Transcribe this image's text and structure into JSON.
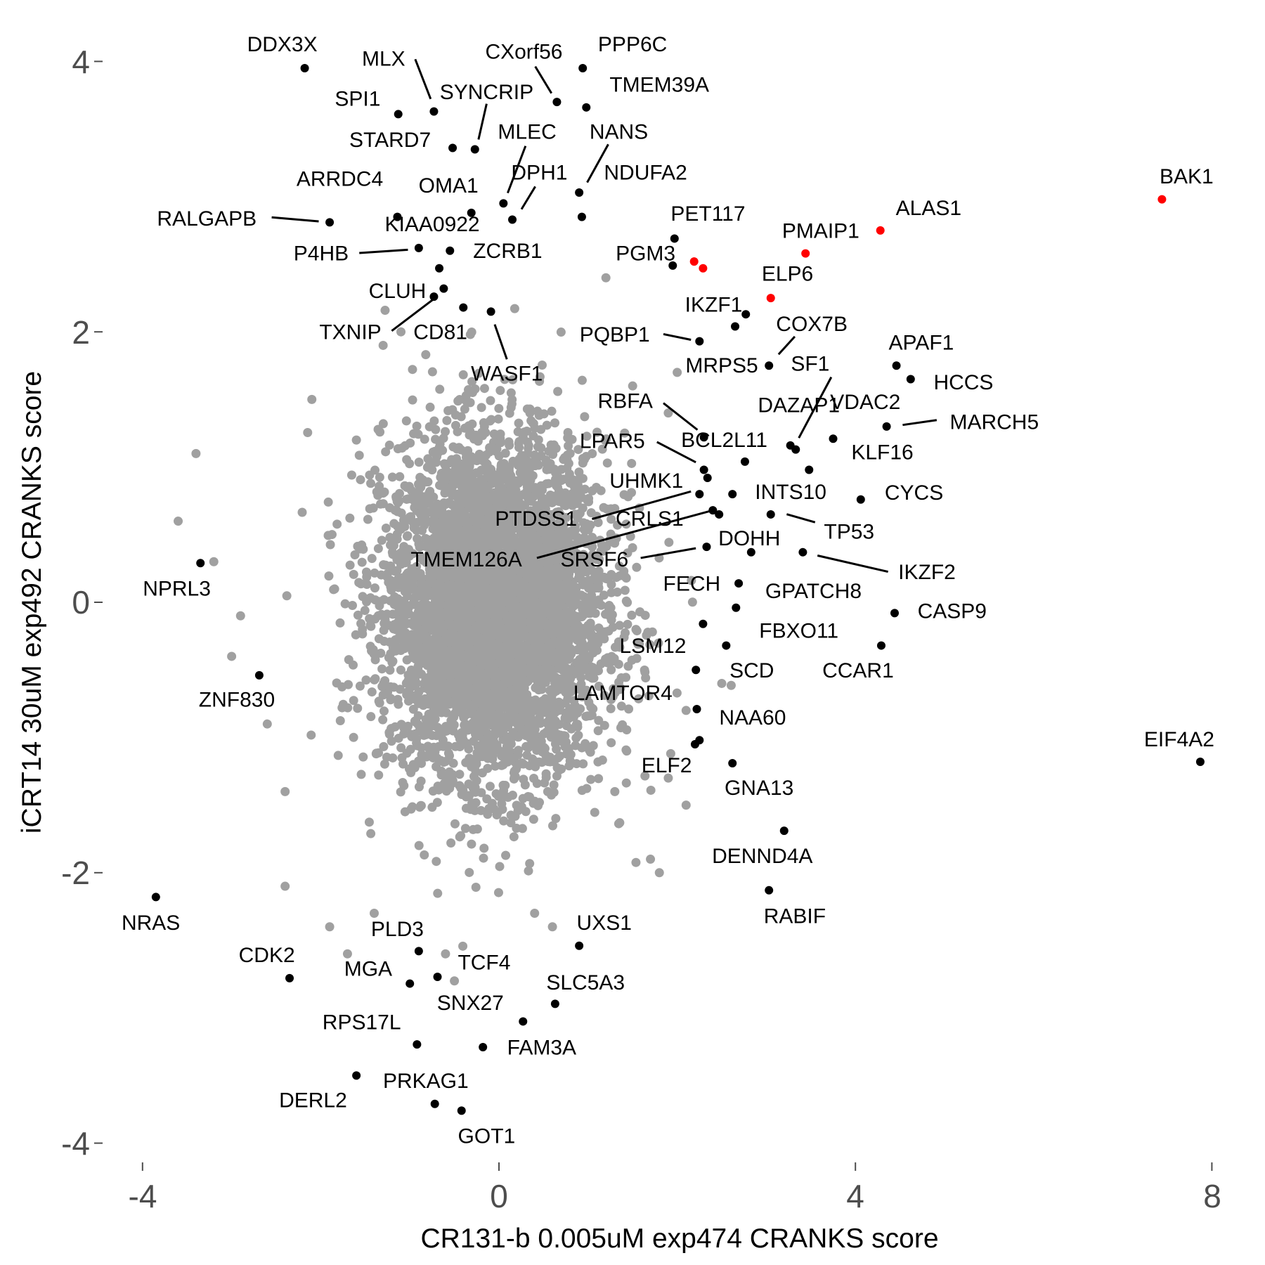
{
  "chart_data": {
    "type": "scatter",
    "title": "",
    "xlabel": "CR131-b 0.005uM exp474 CRANKS score",
    "ylabel": "iCRT14 30uM exp492 CRANKS score",
    "xlim": [
      -4.3,
      8.1
    ],
    "ylim": [
      -4.1,
      4.2
    ],
    "xticks": [
      "-4",
      "0",
      "4",
      "8"
    ],
    "yticks": [
      "-4",
      "-2",
      "0",
      "2",
      "4"
    ],
    "grid": false,
    "legend": "none",
    "colors": {
      "background_points": "#a0a0a0",
      "highlighted": "#000000",
      "red": "#ff0000",
      "tick_text": "#4d4d4d"
    },
    "background_points_outliers": [
      [
        -3.4,
        1.1
      ],
      [
        -3.6,
        0.6
      ],
      [
        -2.9,
        -0.1
      ],
      [
        -3.0,
        -0.4
      ],
      [
        -2.4,
        -1.4
      ],
      [
        -2.4,
        -2.1
      ],
      [
        -1.6,
        1.2
      ],
      [
        -1.7,
        -2.6
      ],
      [
        -1.9,
        -2.4
      ],
      [
        -1.4,
        -2.3
      ],
      [
        -0.6,
        -2.6
      ],
      [
        -0.5,
        -2.8
      ],
      [
        0.4,
        -2.3
      ],
      [
        0.6,
        -2.4
      ],
      [
        1.3,
        -1.4
      ],
      [
        1.9,
        -1.3
      ],
      [
        2.1,
        -1.5
      ],
      [
        1.8,
        -2.0
      ],
      [
        1.7,
        -1.9
      ],
      [
        -1.3,
        1.9
      ],
      [
        -1.1,
        2.0
      ],
      [
        1.2,
        2.4
      ],
      [
        1.5,
        1.6
      ],
      [
        2.0,
        1.7
      ],
      [
        1.9,
        1.4
      ],
      [
        2.1,
        -0.8
      ],
      [
        2.5,
        -0.6
      ],
      [
        -2.1,
        1.5
      ],
      [
        -2.6,
        -0.9
      ],
      [
        -3.2,
        0.3
      ]
    ],
    "points": [
      {
        "label": "DDX3X",
        "x": -2.18,
        "y": 3.95,
        "color": "black"
      },
      {
        "label": "SPI1",
        "x": -1.13,
        "y": 3.61,
        "color": "black"
      },
      {
        "label": "MLX",
        "x": -0.73,
        "y": 3.63,
        "color": "black"
      },
      {
        "label": "STARD7",
        "x": -0.52,
        "y": 3.36,
        "color": "black"
      },
      {
        "label": "SYNCRIP",
        "x": -0.27,
        "y": 3.35,
        "color": "black"
      },
      {
        "label": "CXorf56",
        "x": 0.65,
        "y": 3.7,
        "color": "black"
      },
      {
        "label": "PPP6C",
        "x": 0.94,
        "y": 3.95,
        "color": "black"
      },
      {
        "label": "TMEM39A",
        "x": 0.98,
        "y": 3.66,
        "color": "black"
      },
      {
        "label": "MLEC",
        "x": 0.05,
        "y": 2.95,
        "color": "black"
      },
      {
        "label": "DPH1",
        "x": 0.15,
        "y": 2.83,
        "color": "black"
      },
      {
        "label": "NANS",
        "x": 0.9,
        "y": 3.03,
        "color": "black"
      },
      {
        "label": "NDUFA2",
        "x": 0.93,
        "y": 2.85,
        "color": "black"
      },
      {
        "label": "ARRDC4",
        "x": -1.14,
        "y": 2.85,
        "color": "black"
      },
      {
        "label": "OMA1",
        "x": -0.31,
        "y": 2.88,
        "color": "black"
      },
      {
        "label": "RALGAPB",
        "x": -1.9,
        "y": 2.81,
        "color": "black"
      },
      {
        "label": "KIAA0922",
        "x": -0.67,
        "y": 2.47,
        "color": "black"
      },
      {
        "label": "P4HB",
        "x": -0.9,
        "y": 2.62,
        "color": "black"
      },
      {
        "label": "ZCRB1",
        "x": -0.55,
        "y": 2.6,
        "color": "black"
      },
      {
        "label": "PET117",
        "x": 1.97,
        "y": 2.69,
        "color": "black"
      },
      {
        "label": "PGM3",
        "x": 1.95,
        "y": 2.49,
        "color": "black"
      },
      {
        "label": "PMAIP1",
        "x": 3.44,
        "y": 2.58,
        "color": "red"
      },
      {
        "label": "ALAS1",
        "x": 4.28,
        "y": 2.75,
        "color": "red"
      },
      {
        "label": "BAK1",
        "x": 7.44,
        "y": 2.98,
        "color": "red"
      },
      {
        "label": "ELP6",
        "x": 3.05,
        "y": 2.25,
        "color": "red"
      },
      {
        "label": "",
        "x": 2.19,
        "y": 2.52,
        "color": "red"
      },
      {
        "label": "",
        "x": 2.29,
        "y": 2.47,
        "color": "red"
      },
      {
        "label": "CLUH",
        "x": -0.62,
        "y": 2.32,
        "color": "black"
      },
      {
        "label": "TXNIP",
        "x": -0.73,
        "y": 2.26,
        "color": "black"
      },
      {
        "label": "CD81",
        "x": -0.4,
        "y": 2.18,
        "color": "black"
      },
      {
        "label": "WASF1",
        "x": -0.09,
        "y": 2.15,
        "color": "black"
      },
      {
        "label": "IKZF1",
        "x": 2.77,
        "y": 2.13,
        "color": "black"
      },
      {
        "label": "PQBP1",
        "x": 2.25,
        "y": 1.93,
        "color": "black"
      },
      {
        "label": "COX7B",
        "x": 2.65,
        "y": 2.04,
        "color": "black"
      },
      {
        "label": "MRPS5",
        "x": 3.03,
        "y": 1.75,
        "color": "black"
      },
      {
        "label": "SF1",
        "x": 3.33,
        "y": 1.13,
        "color": "black"
      },
      {
        "label": "APAF1",
        "x": 4.46,
        "y": 1.75,
        "color": "black"
      },
      {
        "label": "HCCS",
        "x": 4.62,
        "y": 1.65,
        "color": "black"
      },
      {
        "label": "MARCH5",
        "x": 4.35,
        "y": 1.3,
        "color": "black"
      },
      {
        "label": "VDAC2",
        "x": 3.75,
        "y": 1.21,
        "color": "black"
      },
      {
        "label": "DAZAP1",
        "x": 3.27,
        "y": 1.16,
        "color": "black"
      },
      {
        "label": "KLF16",
        "x": 3.48,
        "y": 0.98,
        "color": "black"
      },
      {
        "label": "RBFA",
        "x": 2.3,
        "y": 1.22,
        "color": "black"
      },
      {
        "label": "BCL2L11",
        "x": 2.76,
        "y": 1.04,
        "color": "black"
      },
      {
        "label": "LPAR5",
        "x": 2.3,
        "y": 0.98,
        "color": "black"
      },
      {
        "label": "UHMK1",
        "x": 2.34,
        "y": 0.92,
        "color": "black"
      },
      {
        "label": "PTDSS1",
        "x": 2.25,
        "y": 0.8,
        "color": "black"
      },
      {
        "label": "INTS10",
        "x": 2.62,
        "y": 0.8,
        "color": "black"
      },
      {
        "label": "CYCS",
        "x": 4.06,
        "y": 0.76,
        "color": "black"
      },
      {
        "label": "CRLS1",
        "x": 2.47,
        "y": 0.65,
        "color": "black"
      },
      {
        "label": "TMEM126A",
        "x": 2.4,
        "y": 0.68,
        "color": "black"
      },
      {
        "label": "TP53",
        "x": 3.05,
        "y": 0.65,
        "color": "black"
      },
      {
        "label": "DOHH",
        "x": 2.83,
        "y": 0.37,
        "color": "black"
      },
      {
        "label": "SRSF6",
        "x": 2.33,
        "y": 0.41,
        "color": "black"
      },
      {
        "label": "IKZF2",
        "x": 3.41,
        "y": 0.37,
        "color": "black"
      },
      {
        "label": "FECH",
        "x": 2.69,
        "y": 0.14,
        "color": "black"
      },
      {
        "label": "GPATCH8",
        "x": 2.66,
        "y": -0.04,
        "color": "black"
      },
      {
        "label": "CASP9",
        "x": 4.44,
        "y": -0.08,
        "color": "black"
      },
      {
        "label": "FBXO11",
        "x": 2.29,
        "y": -0.16,
        "color": "black"
      },
      {
        "label": "LSM12",
        "x": 2.55,
        "y": -0.32,
        "color": "black"
      },
      {
        "label": "CCAR1",
        "x": 4.29,
        "y": -0.32,
        "color": "black"
      },
      {
        "label": "SCD",
        "x": 2.21,
        "y": -0.5,
        "color": "black"
      },
      {
        "label": "LAMTOR4",
        "x": 2.22,
        "y": -0.79,
        "color": "black"
      },
      {
        "label": "NAA60",
        "x": 2.25,
        "y": -1.02,
        "color": "black"
      },
      {
        "label": "ELF2",
        "x": 2.2,
        "y": -1.05,
        "color": "black"
      },
      {
        "label": "GNA13",
        "x": 2.62,
        "y": -1.19,
        "color": "black"
      },
      {
        "label": "EIF4A2",
        "x": 7.87,
        "y": -1.18,
        "color": "black"
      },
      {
        "label": "DENND4A",
        "x": 3.2,
        "y": -1.69,
        "color": "black"
      },
      {
        "label": "RABIF",
        "x": 3.03,
        "y": -2.13,
        "color": "black"
      },
      {
        "label": "NPRL3",
        "x": -3.35,
        "y": 0.29,
        "color": "black"
      },
      {
        "label": "ZNF830",
        "x": -2.69,
        "y": -0.54,
        "color": "black"
      },
      {
        "label": "NRAS",
        "x": -3.85,
        "y": -2.18,
        "color": "black"
      },
      {
        "label": "CDK2",
        "x": -2.35,
        "y": -2.78,
        "color": "black"
      },
      {
        "label": "PLD3",
        "x": -0.9,
        "y": -2.58,
        "color": "black"
      },
      {
        "label": "UXS1",
        "x": 0.9,
        "y": -2.54,
        "color": "black"
      },
      {
        "label": "MGA",
        "x": -1.0,
        "y": -2.82,
        "color": "black"
      },
      {
        "label": "TCF4",
        "x": -0.69,
        "y": -2.77,
        "color": "black"
      },
      {
        "label": "SNX27",
        "x": 0.27,
        "y": -3.1,
        "color": "black"
      },
      {
        "label": "SLC5A3",
        "x": 0.63,
        "y": -2.97,
        "color": "black"
      },
      {
        "label": "RPS17L",
        "x": -0.92,
        "y": -3.27,
        "color": "black"
      },
      {
        "label": "FAM3A",
        "x": -0.18,
        "y": -3.29,
        "color": "black"
      },
      {
        "label": "PRKAG1",
        "x": -1.6,
        "y": -3.5,
        "color": "black"
      },
      {
        "label": "DERL2",
        "x": -0.72,
        "y": -3.71,
        "color": "black"
      },
      {
        "label": "GOT1",
        "x": -0.42,
        "y": -3.76,
        "color": "black"
      }
    ]
  }
}
